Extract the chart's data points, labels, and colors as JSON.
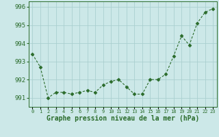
{
  "x": [
    0,
    1,
    2,
    3,
    4,
    5,
    6,
    7,
    8,
    9,
    10,
    11,
    12,
    13,
    14,
    15,
    16,
    17,
    18,
    19,
    20,
    21,
    22,
    23
  ],
  "y": [
    993.4,
    992.7,
    991.0,
    991.3,
    991.3,
    991.2,
    991.3,
    991.4,
    991.3,
    991.7,
    991.9,
    992.0,
    991.6,
    991.2,
    991.2,
    992.0,
    992.0,
    992.3,
    993.3,
    994.4,
    993.9,
    995.1,
    995.7,
    995.9
  ],
  "line_color": "#2a6b2a",
  "marker": "D",
  "marker_size": 2.5,
  "bg_color": "#cce8e8",
  "grid_color": "#aacfcf",
  "xlabel": "Graphe pression niveau de la mer (hPa)",
  "xlabel_color": "#2a6b2a",
  "tick_color": "#2a6b2a",
  "ylim": [
    990.5,
    996.3
  ],
  "yticks": [
    991,
    992,
    993,
    994,
    995,
    996
  ],
  "xlim": [
    -0.5,
    23.5
  ],
  "ytick_fontsize": 6.5,
  "xtick_fontsize": 5.0,
  "xlabel_fontsize": 7.0
}
